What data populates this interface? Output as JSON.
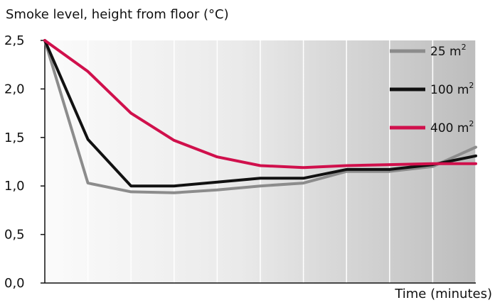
{
  "chart_data": {
    "type": "line",
    "title": "Smoke level, height from floor (°C)",
    "xlabel": "Time (minutes)",
    "ylabel": "",
    "ylim": [
      0,
      2.5
    ],
    "yticks": [
      "0,0",
      "0,5",
      "1,0",
      "1,5",
      "2,0",
      "2,5"
    ],
    "x": [
      0,
      1,
      2,
      3,
      4,
      5,
      6,
      7,
      8,
      9,
      10
    ],
    "xlim": [
      0,
      10
    ],
    "grid": "vertical",
    "legend_position": "top-right",
    "series": [
      {
        "name": "25 m²",
        "base": "25 m",
        "sup": "2",
        "color": "#8c8c8c",
        "values": [
          2.5,
          1.03,
          0.94,
          0.93,
          0.96,
          1.0,
          1.03,
          1.15,
          1.15,
          1.2,
          1.4
        ]
      },
      {
        "name": "100 m²",
        "base": "100 m",
        "sup": "2",
        "color": "#111111",
        "values": [
          2.5,
          1.48,
          1.0,
          1.0,
          1.04,
          1.08,
          1.08,
          1.17,
          1.17,
          1.22,
          1.31
        ]
      },
      {
        "name": "400 m²",
        "base": "400 m",
        "sup": "2",
        "color": "#d0104c",
        "values": [
          2.5,
          2.18,
          1.75,
          1.47,
          1.3,
          1.21,
          1.19,
          1.21,
          1.22,
          1.23,
          1.23
        ]
      }
    ]
  }
}
